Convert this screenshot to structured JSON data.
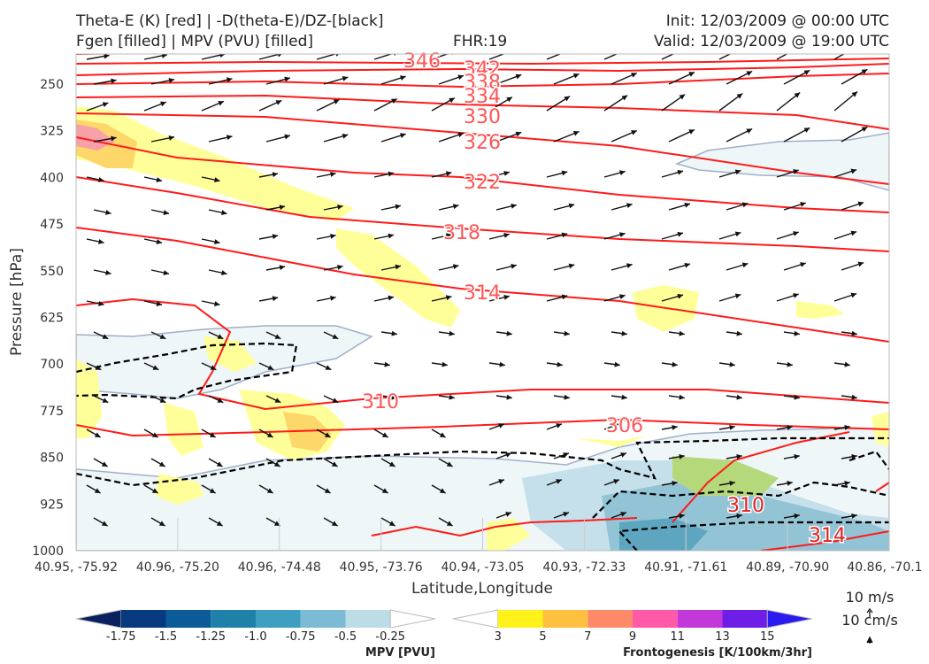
{
  "header": {
    "title_left_1": "Theta-E (K) [red] | -D(theta-E)/DZ-[black]",
    "title_left_2": "Fgen [filled] | MPV (PVU) [filled]",
    "fhr": "FHR:19",
    "init": "Init: 12/03/2009 @ 00:00 UTC",
    "valid": "Valid: 12/03/2009 @ 19:00 UTC"
  },
  "chart_data": {
    "type": "cross-section",
    "xlabel": "Latitude,Longitude",
    "ylabel": "Pressure [hPa]",
    "x_ticks": [
      "40.95, -75.92",
      "40.96, -75.20",
      "40.96, -74.48",
      "40.95, -73.76",
      "40.94, -73.05",
      "40.93, -72.33",
      "40.91, -71.61",
      "40.89, -70.90",
      "40.86, -70.1"
    ],
    "y_ticks": [
      250,
      325,
      400,
      475,
      550,
      625,
      700,
      775,
      850,
      925,
      1000
    ],
    "ylim": [
      1000,
      200
    ],
    "theta_e_labels": [
      "346",
      "342",
      "338",
      "334",
      "330",
      "326",
      "322",
      "318",
      "314",
      "310",
      "306",
      "310",
      "314"
    ],
    "colors": {
      "theta_e": "#ff1a1a",
      "label": "#ff5555",
      "mpv_fill": "#e6f2f5",
      "fgen_fill": "#ffff99",
      "dtheta": "#000000"
    }
  },
  "colorbars": {
    "mpv": {
      "label": "MPV [PVU]",
      "ticks": [
        "-1.75",
        "-1.5",
        "-1.25",
        "-1.0",
        "-0.75",
        "-0.5",
        "-0.25"
      ],
      "colors": [
        "#08205e",
        "#083a80",
        "#0b5b98",
        "#1f80a9",
        "#3f9fc0",
        "#7bbcd4",
        "#bddde6",
        "#ffffff"
      ]
    },
    "fgen": {
      "label": "Frontogenesis [K/100km/3hr]",
      "ticks": [
        "3",
        "5",
        "7",
        "9",
        "11",
        "13",
        "15"
      ],
      "colors": [
        "#ffffff",
        "#fff21a",
        "#ffc040",
        "#ff8a6a",
        "#ff5aa8",
        "#c238d8",
        "#6f1ee8",
        "#2a1cf0"
      ]
    }
  },
  "quiver_key": {
    "line1": "10 m/s",
    "line2": "10 cm/s"
  }
}
